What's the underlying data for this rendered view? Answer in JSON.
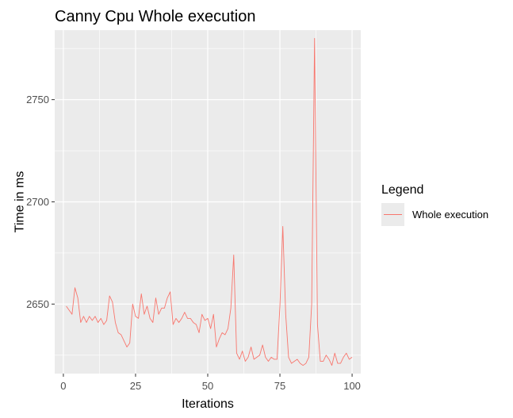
{
  "chart_data": {
    "type": "line",
    "title": "Canny Cpu Whole execution",
    "xlabel": "Iterations",
    "ylabel": "Time in ms",
    "xlim": [
      -3,
      103
    ],
    "ylim": [
      2616,
      2784
    ],
    "x_ticks": [
      0,
      25,
      50,
      75,
      100
    ],
    "y_ticks": [
      2650,
      2700,
      2750
    ],
    "grid": true,
    "legend": {
      "title": "Legend",
      "position": "right"
    },
    "series": [
      {
        "name": "Whole execution",
        "color": "#F8766D",
        "x": [
          1,
          2,
          3,
          4,
          5,
          6,
          7,
          8,
          9,
          10,
          11,
          12,
          13,
          14,
          15,
          16,
          17,
          18,
          19,
          20,
          21,
          22,
          23,
          24,
          25,
          26,
          27,
          28,
          29,
          30,
          31,
          32,
          33,
          34,
          35,
          36,
          37,
          38,
          39,
          40,
          41,
          42,
          43,
          44,
          45,
          46,
          47,
          48,
          49,
          50,
          51,
          52,
          53,
          54,
          55,
          56,
          57,
          58,
          59,
          60,
          61,
          62,
          63,
          64,
          65,
          66,
          67,
          68,
          69,
          70,
          71,
          72,
          73,
          74,
          75,
          76,
          77,
          78,
          79,
          80,
          81,
          82,
          83,
          84,
          85,
          86,
          87,
          88,
          89,
          90,
          91,
          92,
          93,
          94,
          95,
          96,
          97,
          98,
          99,
          100
        ],
        "values": [
          2649,
          2647,
          2645,
          2658,
          2653,
          2641,
          2644,
          2641,
          2644,
          2642,
          2644,
          2641,
          2643,
          2640,
          2642,
          2654,
          2651,
          2641,
          2636,
          2635,
          2632,
          2629,
          2631,
          2650,
          2644,
          2643,
          2655,
          2645,
          2649,
          2643,
          2641,
          2653,
          2645,
          2648,
          2648,
          2653,
          2656,
          2640,
          2643,
          2641,
          2643,
          2646,
          2643,
          2643,
          2641,
          2640,
          2636,
          2645,
          2642,
          2643,
          2638,
          2645,
          2629,
          2633,
          2636,
          2635,
          2638,
          2648,
          2674,
          2626,
          2623,
          2627,
          2622,
          2624,
          2629,
          2623,
          2624,
          2625,
          2630,
          2624,
          2622,
          2624,
          2623,
          2623,
          2649,
          2688,
          2645,
          2624,
          2621,
          2622,
          2623,
          2621,
          2620,
          2621,
          2624,
          2650,
          2780,
          2640,
          2622,
          2622,
          2625,
          2623,
          2620,
          2626,
          2621,
          2621,
          2624,
          2626,
          2623,
          2624
        ]
      }
    ]
  }
}
